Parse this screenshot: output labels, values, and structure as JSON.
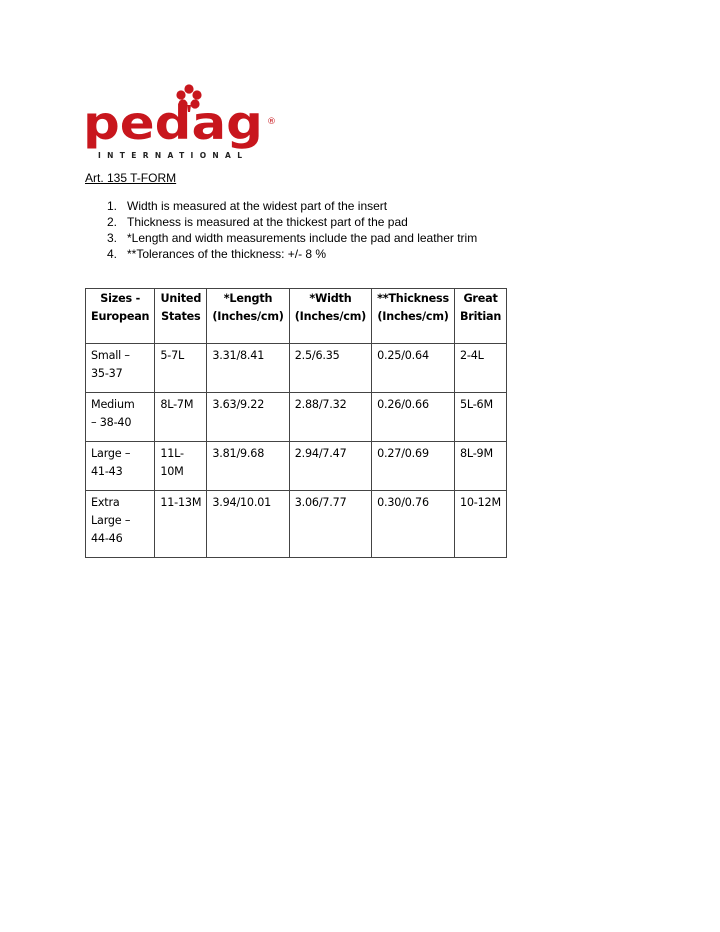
{
  "logo": {
    "wordmark": "pedag",
    "subtitle": "INTERNATIONAL",
    "registered": "®",
    "color": "#c8161d"
  },
  "title": "Art. 135 T-FORM",
  "notes": [
    {
      "num": "1.",
      "text": "Width is measured at the widest part of the insert"
    },
    {
      "num": "2.",
      "text": "Thickness is measured at the thickest part of the pad"
    },
    {
      "num": "3.",
      "text": "*Length and width measurements include the pad and leather trim"
    },
    {
      "num": "4.",
      "text": "**Tolerances of the thickness: +/- 8 %"
    }
  ],
  "table": {
    "headers": [
      [
        "Sizes -",
        "European"
      ],
      [
        "United",
        "States"
      ],
      [
        "*Length",
        "(Inches/cm)"
      ],
      [
        "*Width",
        "(Inches/cm)"
      ],
      [
        "**Thickness",
        "(Inches/cm)"
      ],
      [
        "Great",
        "Britian"
      ]
    ],
    "rows": [
      [
        [
          "Small –",
          "35-37"
        ],
        "5-7L",
        "3.31/8.41",
        "2.5/6.35",
        "0.25/0.64",
        "2-4L"
      ],
      [
        [
          "Medium",
          "– 38-40"
        ],
        "8L-7M",
        "3.63/9.22",
        "2.88/7.32",
        "0.26/0.66",
        "5L-6M"
      ],
      [
        [
          "Large –",
          "41-43"
        ],
        "11L-10M",
        "3.81/9.68",
        "2.94/7.47",
        "0.27/0.69",
        "8L-9M"
      ],
      [
        [
          "Extra",
          "Large –",
          "44-46"
        ],
        "11-13M",
        "3.94/10.01",
        "3.06/7.77",
        "0.30/0.76",
        "10-12M"
      ]
    ]
  }
}
